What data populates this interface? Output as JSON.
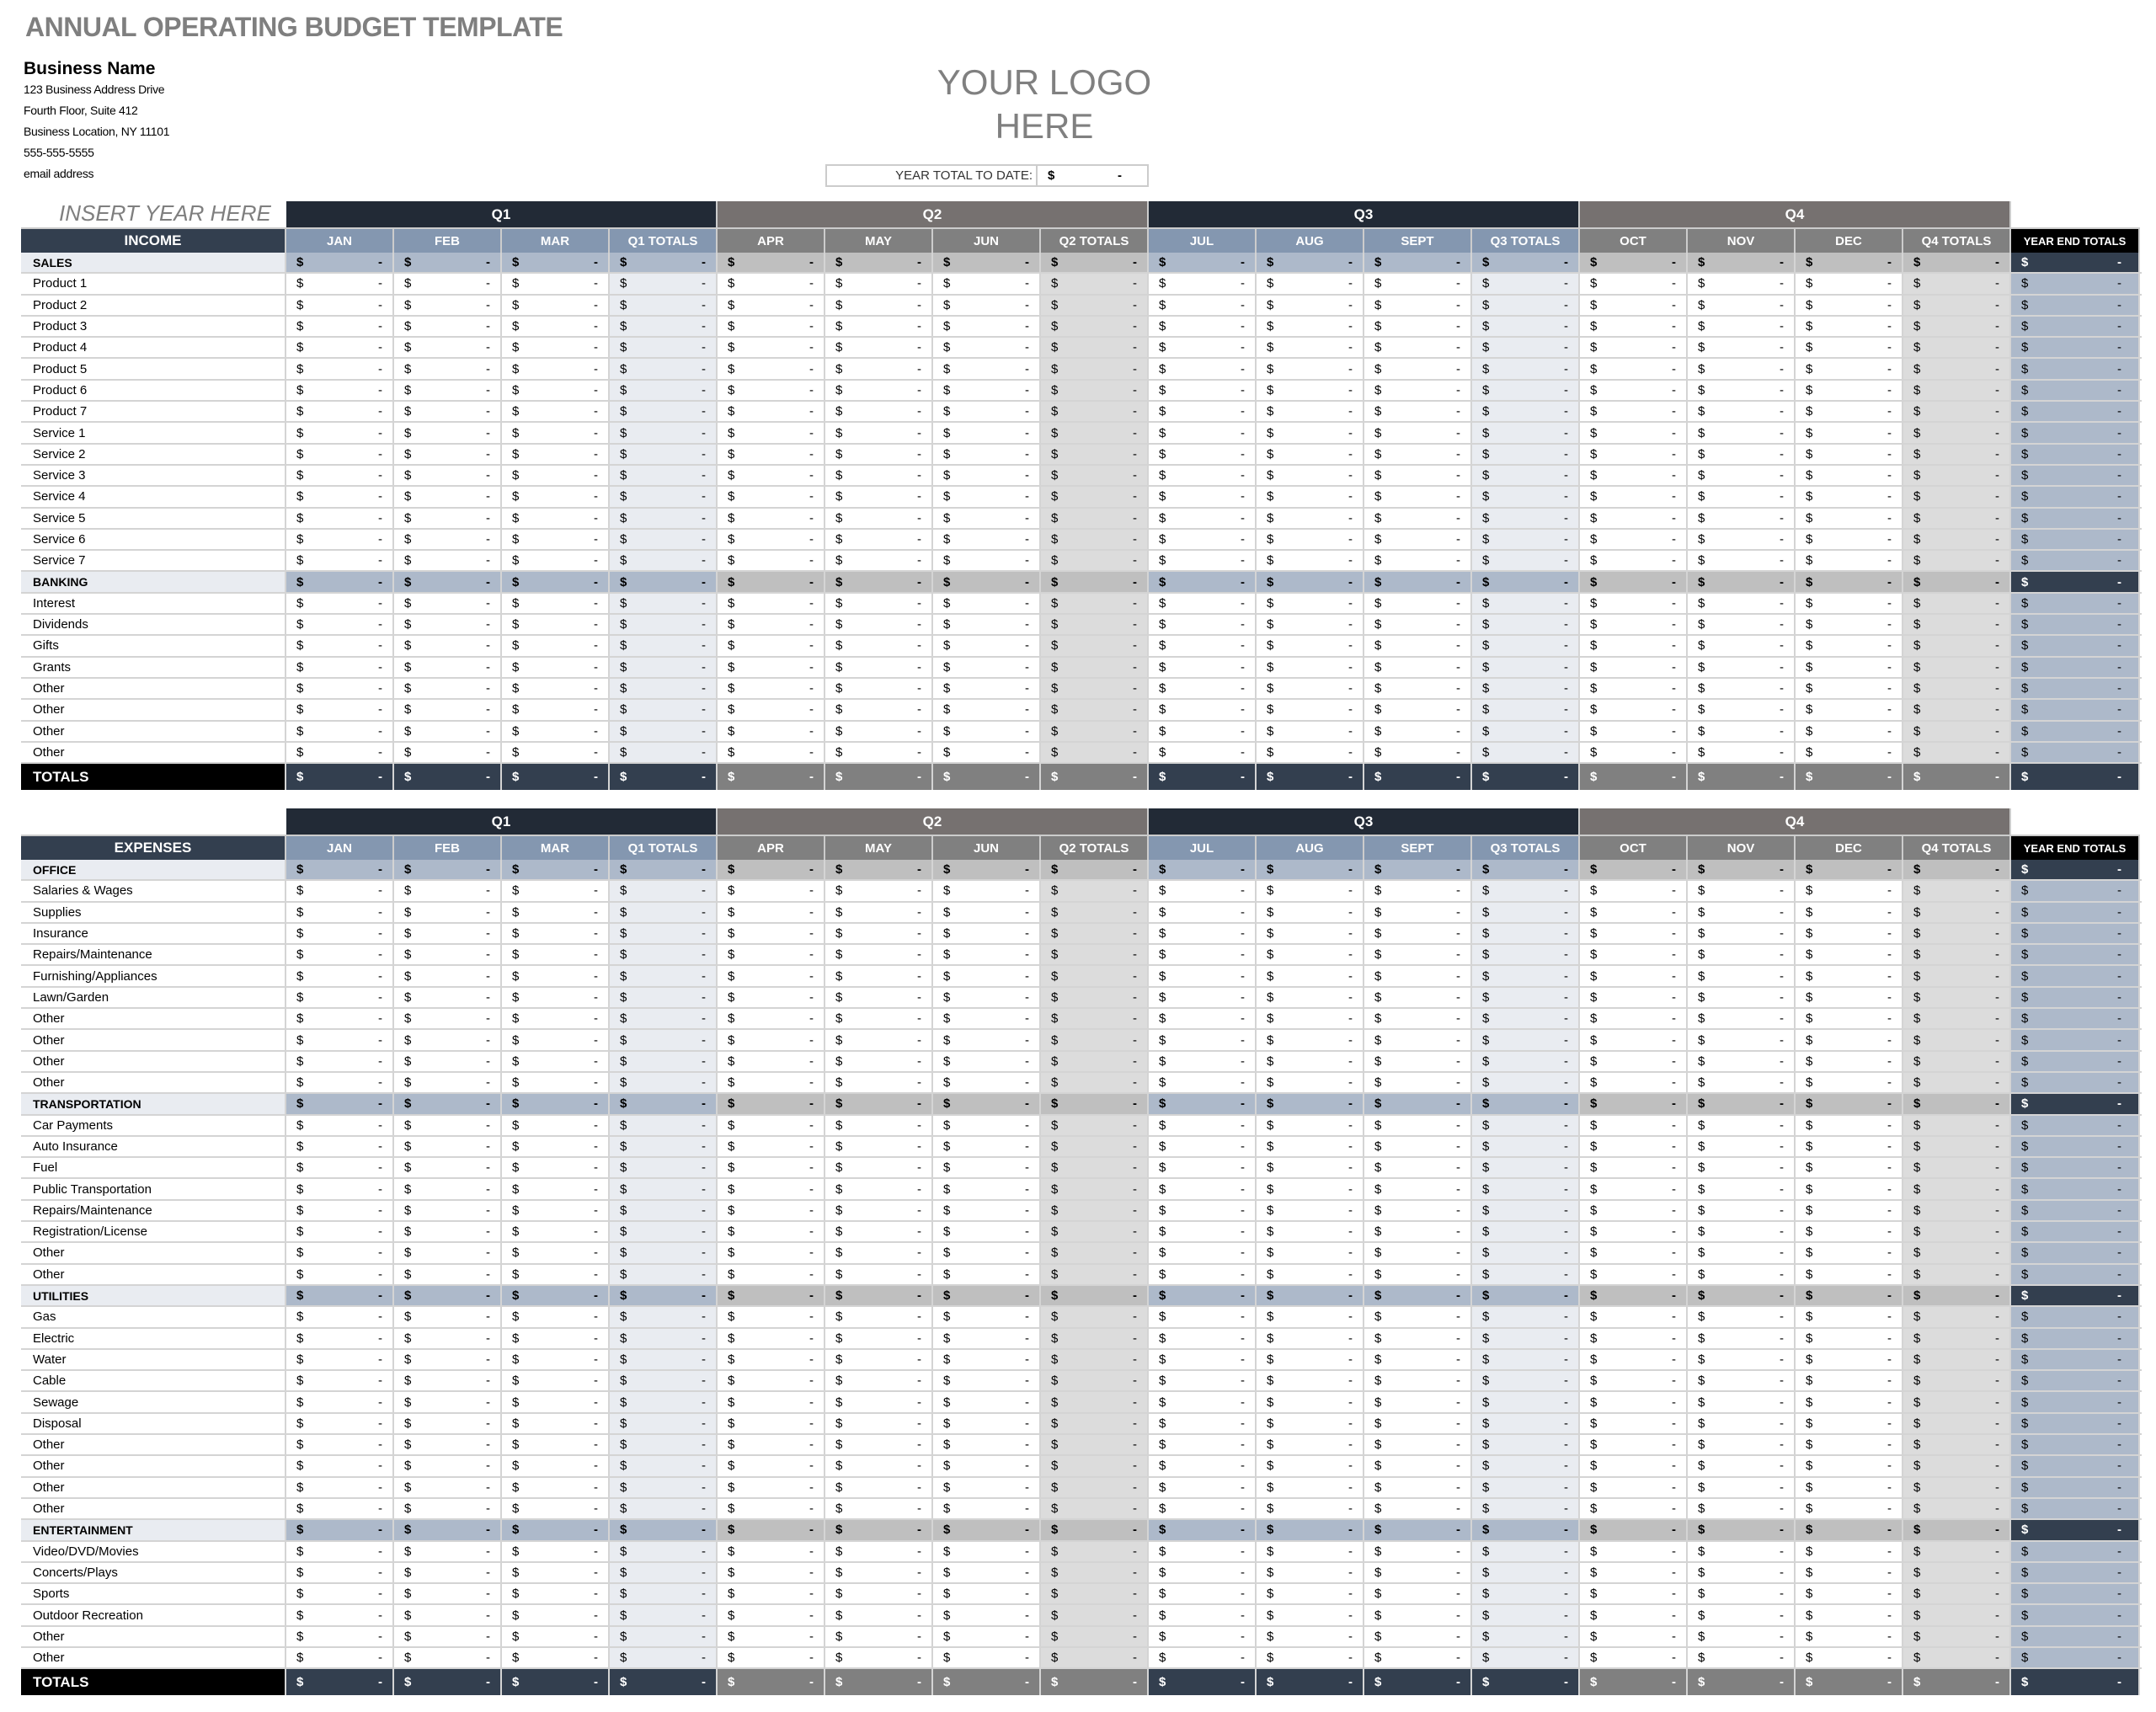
{
  "title": "ANNUAL OPERATING BUDGET TEMPLATE",
  "business": {
    "name": "Business Name",
    "address_lines": [
      "123 Business Address Drive",
      "Fourth Floor, Suite 412",
      "Business Location, NY  11101",
      "555-555-5555",
      "email address"
    ]
  },
  "logo": {
    "line1": "YOUR LOGO",
    "line2": "HERE"
  },
  "year_total": {
    "label": "YEAR TOTAL TO DATE:",
    "currency": "$",
    "value": "-"
  },
  "year_placeholder": "INSERT YEAR HERE",
  "quarters": [
    {
      "label": "Q1",
      "months": [
        "JAN",
        "FEB",
        "MAR"
      ],
      "total_label": "Q1 TOTALS"
    },
    {
      "label": "Q2",
      "months": [
        "APR",
        "MAY",
        "JUN"
      ],
      "total_label": "Q2 TOTALS"
    },
    {
      "label": "Q3",
      "months": [
        "JUL",
        "AUG",
        "SEPT"
      ],
      "total_label": "Q3 TOTALS"
    },
    {
      "label": "Q4",
      "months": [
        "OCT",
        "NOV",
        "DEC"
      ],
      "total_label": "Q4 TOTALS"
    }
  ],
  "year_end_label": "YEAR END TOTALS",
  "cell": {
    "currency": "$",
    "empty": "-"
  },
  "totals_label": "TOTALS",
  "colors": {
    "navy": "#222a36",
    "slate": "#333f4f",
    "steel": "#8497b0",
    "steel_light": "#adb9ca",
    "pale": "#e9ecf1",
    "gray_dark": "#767170",
    "gray": "#808080",
    "gray_mid": "#bfbfbf",
    "gray_light": "#dcdcdc"
  },
  "income": {
    "header": "INCOME",
    "groups": [
      {
        "category": "SALES",
        "items": [
          "Product 1",
          "Product 2",
          "Product 3",
          "Product 4",
          "Product 5",
          "Product 6",
          "Product 7",
          "Service 1",
          "Service 2",
          "Service 3",
          "Service 4",
          "Service 5",
          "Service 6",
          "Service 7"
        ]
      },
      {
        "category": "BANKING",
        "items": [
          "Interest",
          "Dividends",
          "Gifts",
          "Grants",
          "Other",
          "Other",
          "Other",
          "Other"
        ]
      }
    ]
  },
  "expenses": {
    "header": "EXPENSES",
    "groups": [
      {
        "category": "OFFICE",
        "items": [
          "Salaries & Wages",
          "Supplies",
          "Insurance",
          "Repairs/Maintenance",
          "Furnishing/Appliances",
          "Lawn/Garden",
          "Other",
          "Other",
          "Other",
          "Other"
        ]
      },
      {
        "category": "TRANSPORTATION",
        "items": [
          "Car Payments",
          "Auto Insurance",
          "Fuel",
          "Public Transportation",
          "Repairs/Maintenance",
          "Registration/License",
          "Other",
          "Other"
        ]
      },
      {
        "category": "UTILITIES",
        "items": [
          "Gas",
          "Electric",
          "Water",
          "Cable",
          "Sewage",
          "Disposal",
          "Other",
          "Other",
          "Other",
          "Other"
        ]
      },
      {
        "category": "ENTERTAINMENT",
        "items": [
          "Video/DVD/Movies",
          "Concerts/Plays",
          "Sports",
          "Outdoor Recreation",
          "Other",
          "Other"
        ]
      }
    ]
  }
}
